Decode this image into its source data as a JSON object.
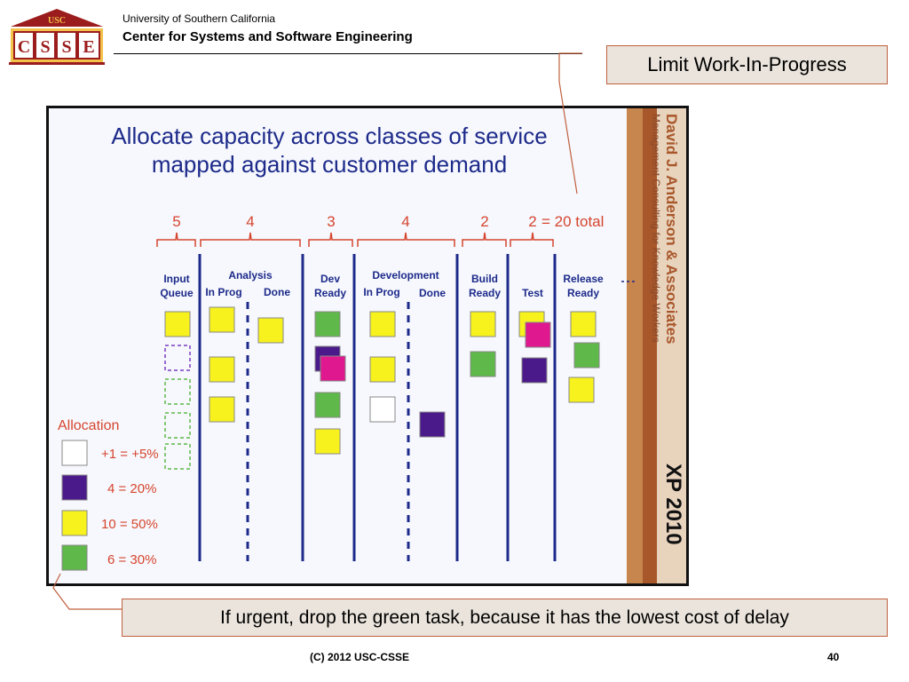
{
  "header": {
    "logo_top": "USC",
    "logo_letters": [
      "C",
      "S",
      "S",
      "E"
    ],
    "org": "University of Southern California",
    "center": "Center for Systems and Software Engineering"
  },
  "callouts": {
    "top": "Limit Work-In-Progress",
    "bottom": "If urgent, drop the green task, because it has the lowest cost of delay"
  },
  "slide": {
    "title_line1": "Allocate capacity across classes of service",
    "title_line2": "mapped against customer demand",
    "wip_limits": [
      "5",
      "4",
      "3",
      "4",
      "2",
      "2"
    ],
    "wip_total": "= 20 total",
    "columns": {
      "input": [
        "Input",
        "Queue"
      ],
      "analysis": "Analysis",
      "analysis_sub": [
        "In Prog",
        "Done"
      ],
      "dev_ready": [
        "Dev",
        "Ready"
      ],
      "development": "Development",
      "development_sub": [
        "In Prog",
        "Done"
      ],
      "build_ready": [
        "Build",
        "Ready"
      ],
      "test": "Test",
      "release_ready": [
        "Release",
        "Ready"
      ]
    },
    "allocation": {
      "title": "Allocation",
      "items": [
        {
          "label": "+1 = +5%",
          "color": "#ffffff"
        },
        {
          "label": "4 = 20%",
          "color": "#4b1a8a"
        },
        {
          "label": "10 = 50%",
          "color": "#f7f21d"
        },
        {
          "label": "6 = 30%",
          "color": "#5fb84a"
        }
      ]
    },
    "side_banner": {
      "name": "David J. Anderson & Associates",
      "tagline": "Management Consulting for Knowledge Workers",
      "event": "XP 2010"
    },
    "colors": {
      "yellow": "#f7f21d",
      "green": "#5fb84a",
      "purple": "#4b1a8a",
      "magenta": "#e0188f",
      "white": "#ffffff",
      "accent_red": "#d6452e",
      "title_blue": "#1d2a8a",
      "banner_brown": "#a8572a"
    }
  },
  "footer": {
    "copyright": "(C) 2012 USC-CSSE",
    "page": "40"
  }
}
